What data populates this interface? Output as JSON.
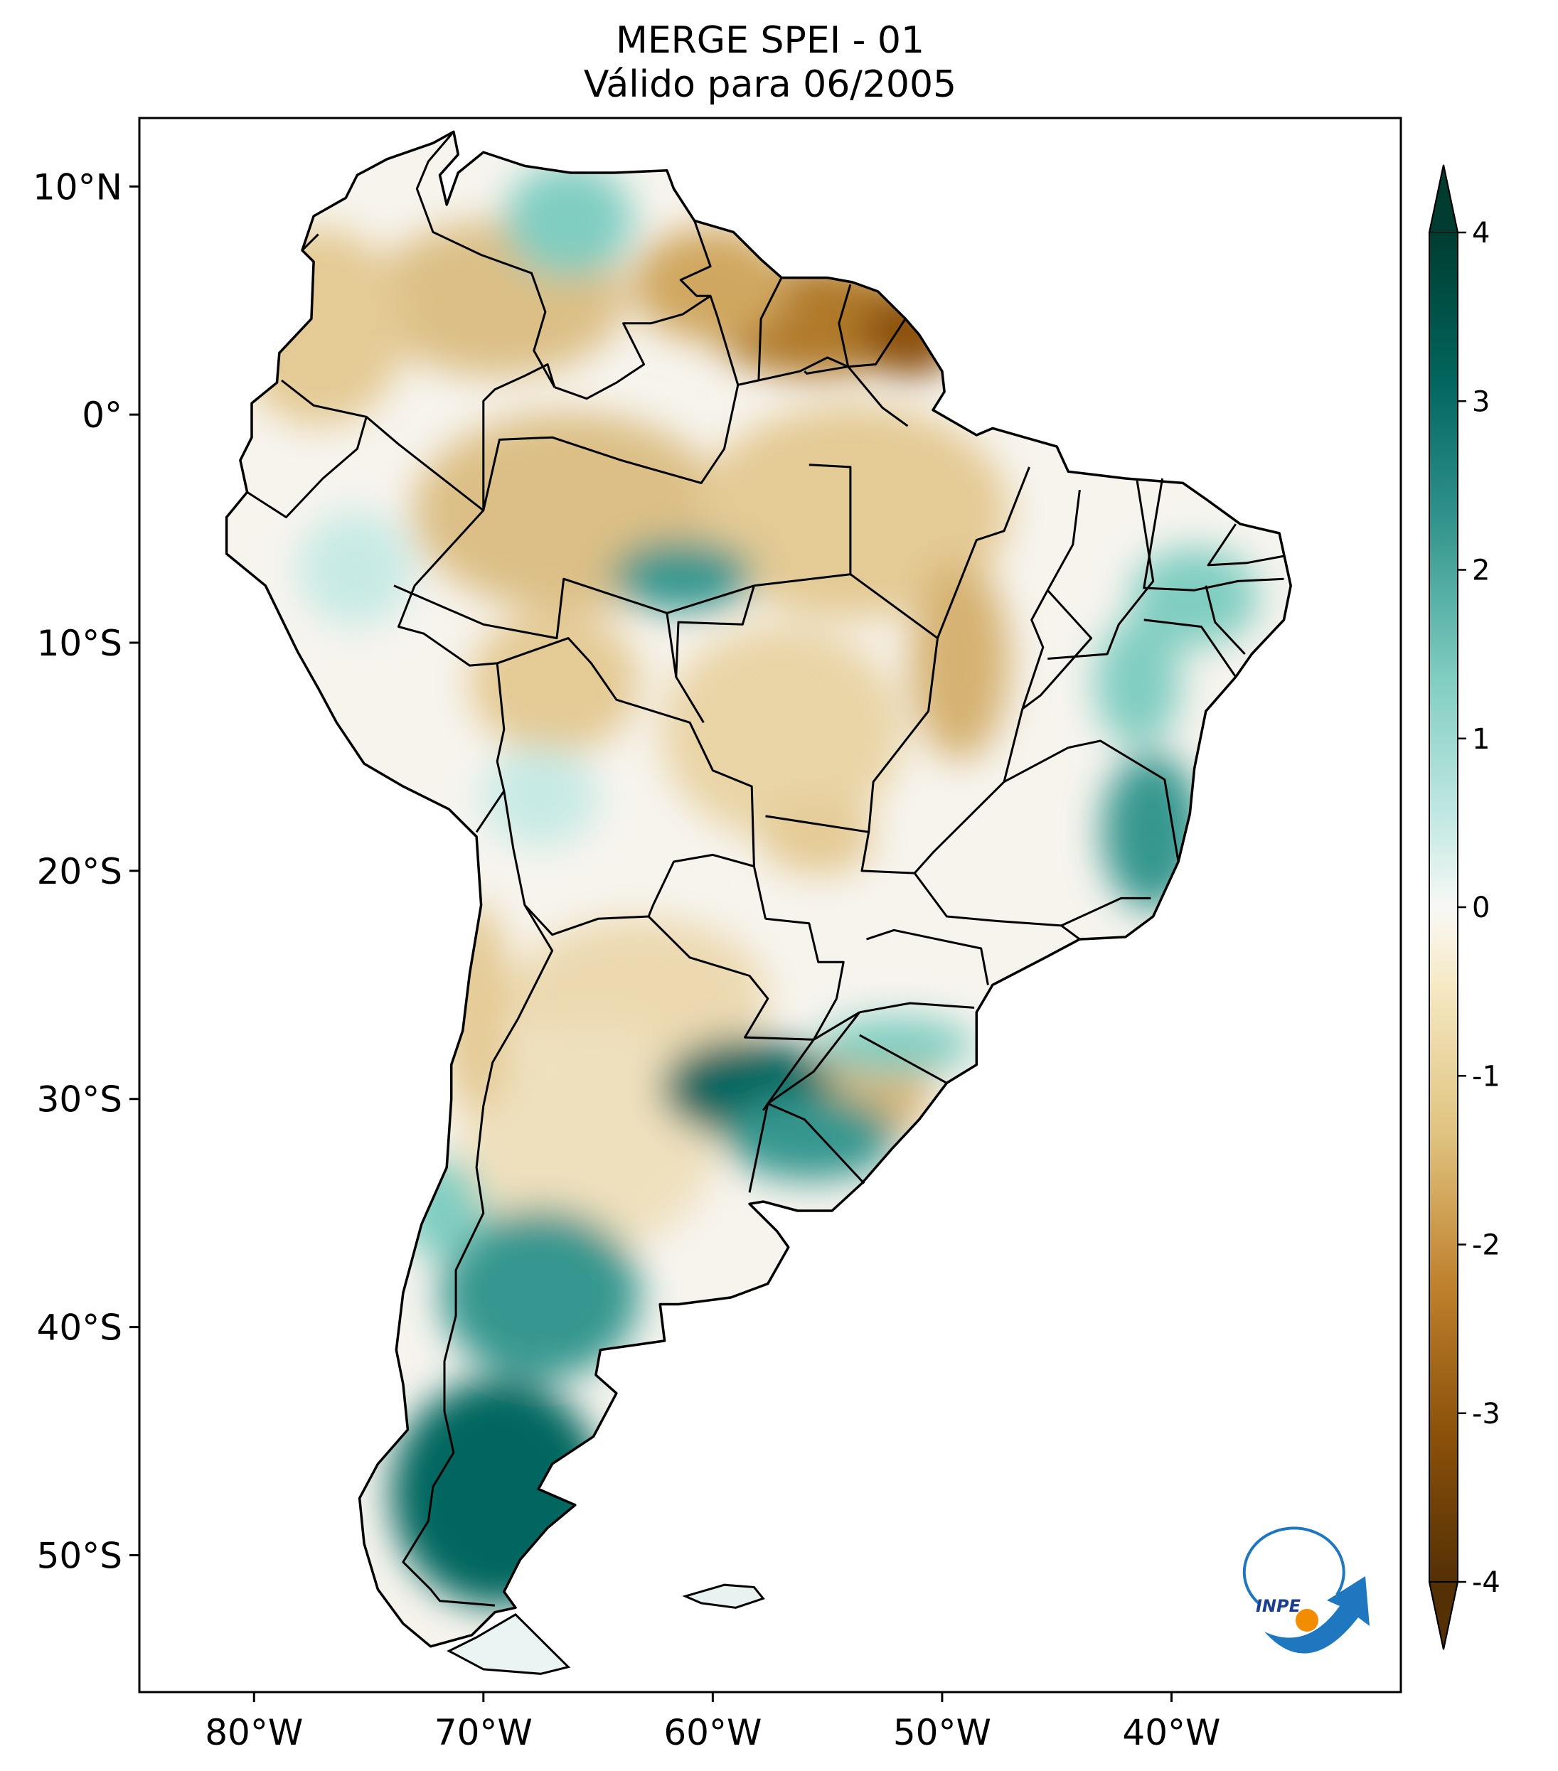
{
  "title": {
    "line1": "MERGE   SPEI - 01",
    "line2": "Válido para 06/2005"
  },
  "map": {
    "lon_range": [
      -85,
      -30
    ],
    "lat_range": [
      -56,
      13
    ],
    "lon_ticks": [
      {
        "value": -80,
        "label": "80°W"
      },
      {
        "value": -70,
        "label": "70°W"
      },
      {
        "value": -60,
        "label": "60°W"
      },
      {
        "value": -50,
        "label": "50°W"
      },
      {
        "value": -40,
        "label": "40°W"
      }
    ],
    "lat_ticks": [
      {
        "value": 10,
        "label": "10°N"
      },
      {
        "value": 0,
        "label": "0°"
      },
      {
        "value": -10,
        "label": "10°S"
      },
      {
        "value": -20,
        "label": "20°S"
      },
      {
        "value": -30,
        "label": "30°S"
      },
      {
        "value": -40,
        "label": "40°S"
      },
      {
        "value": -50,
        "label": "50°S"
      }
    ]
  },
  "colorbar": {
    "min": -4,
    "max": 4,
    "extend": "both",
    "colormap": "BrBG",
    "ticks": [
      {
        "value": 4,
        "label": "4"
      },
      {
        "value": 3,
        "label": "3"
      },
      {
        "value": 2,
        "label": "2"
      },
      {
        "value": 1,
        "label": "1"
      },
      {
        "value": 0,
        "label": "0"
      },
      {
        "value": -1,
        "label": "-1"
      },
      {
        "value": -2,
        "label": "-2"
      },
      {
        "value": -3,
        "label": "-3"
      },
      {
        "value": -4,
        "label": "-4"
      }
    ]
  },
  "logo": {
    "text": "INPE",
    "colors": {
      "blue": "#1f77c0",
      "orange": "#f28c00"
    }
  }
}
